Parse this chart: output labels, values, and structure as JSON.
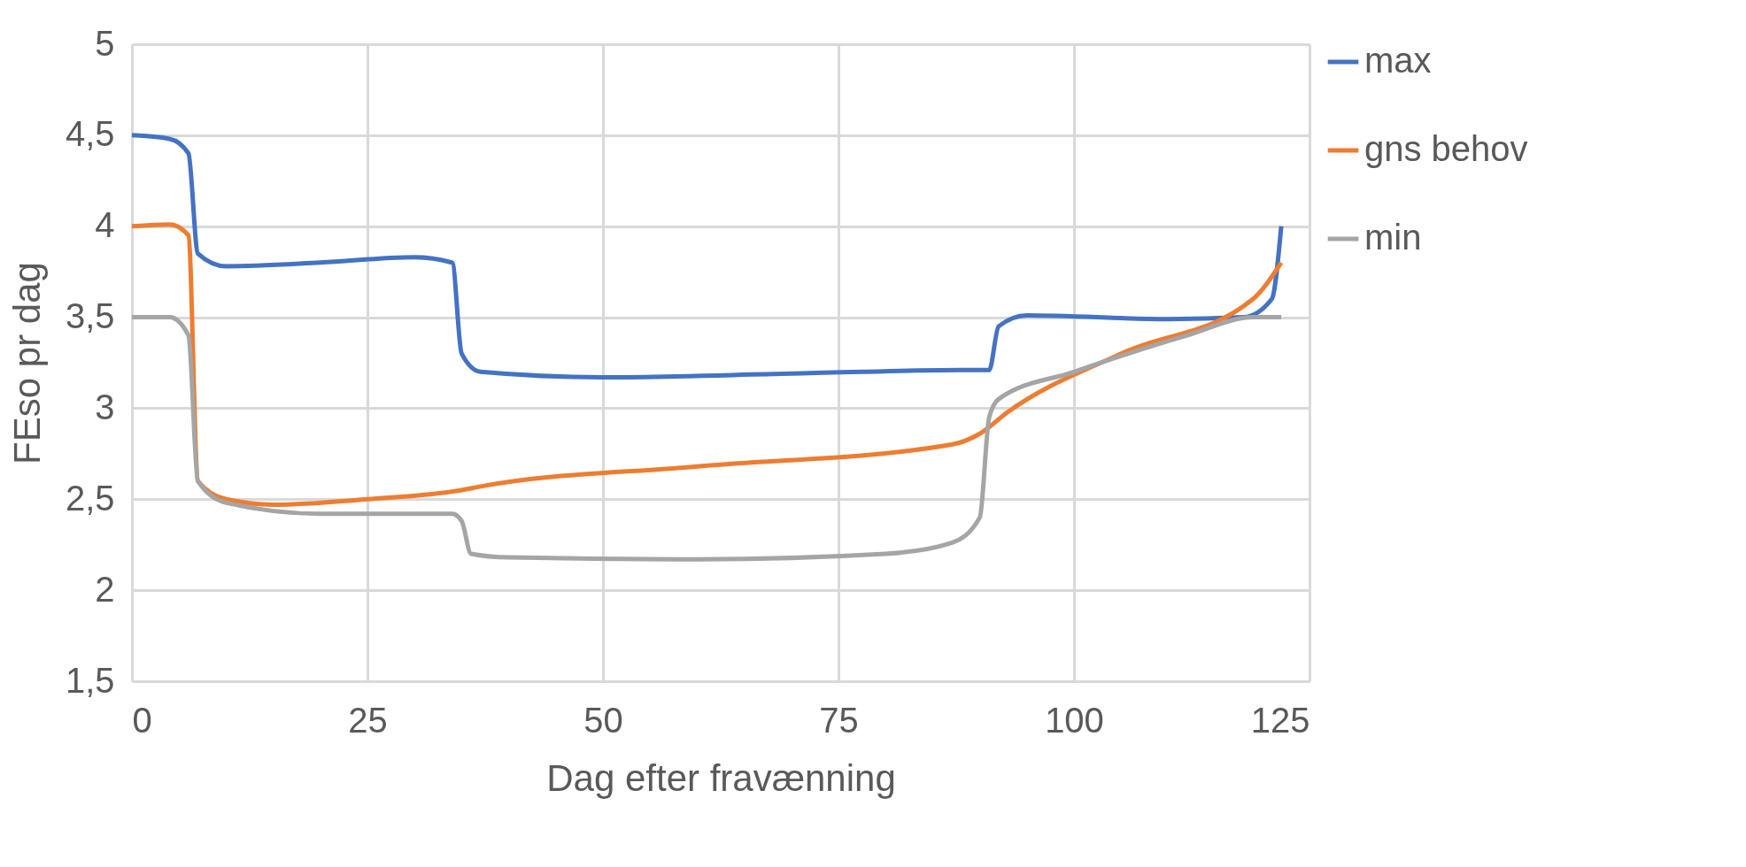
{
  "chart_data": {
    "type": "line",
    "xlabel": "Dag efter fravænning",
    "ylabel": "FEso pr dag",
    "xlim": [
      0,
      125
    ],
    "xticks": [
      0,
      25,
      50,
      75,
      100,
      125
    ],
    "ylim": [
      1.5,
      5
    ],
    "yticks": [
      {
        "value": 1.5,
        "label": "1,5"
      },
      2,
      {
        "value": 2.5,
        "label": "2,5"
      },
      3,
      {
        "value": 3.5,
        "label": "3,5"
      },
      4,
      {
        "value": 4.5,
        "label": "4,5"
      },
      5
    ],
    "grid": true,
    "legend": "right",
    "marker": "none",
    "line_style": "solid",
    "series": [
      {
        "name": "max",
        "color": "#4472c4",
        "x": [
          0,
          4,
          6,
          7,
          10,
          20,
          30,
          34,
          35,
          37,
          50,
          70,
          88,
          91,
          92,
          95,
          110,
          118,
          121,
          122
        ],
        "values": [
          4.5,
          4.48,
          4.4,
          3.85,
          3.78,
          3.8,
          3.83,
          3.8,
          3.3,
          3.2,
          3.17,
          3.19,
          3.21,
          3.21,
          3.45,
          3.51,
          3.49,
          3.5,
          3.6,
          4.0
        ]
      },
      {
        "name": "gns behov",
        "color": "#ed7d31",
        "x": [
          0,
          4,
          6,
          7,
          10,
          15,
          25,
          35,
          37,
          60,
          87,
          90,
          93,
          105,
          119,
          122
        ],
        "values": [
          4.0,
          4.01,
          3.95,
          2.6,
          2.5,
          2.47,
          2.5,
          2.55,
          2.57,
          2.68,
          2.8,
          2.86,
          2.98,
          3.3,
          3.6,
          3.8
        ]
      },
      {
        "name": "min",
        "color": "#a5a5a5",
        "x": [
          0,
          4,
          6,
          7,
          10,
          20,
          34,
          35,
          36,
          40,
          60,
          80,
          87,
          90,
          91,
          92,
          100,
          112,
          119,
          122
        ],
        "values": [
          3.5,
          3.5,
          3.4,
          2.6,
          2.48,
          2.42,
          2.42,
          2.38,
          2.2,
          2.18,
          2.17,
          2.2,
          2.26,
          2.4,
          2.95,
          3.05,
          3.2,
          3.4,
          3.5,
          3.5
        ]
      }
    ]
  }
}
